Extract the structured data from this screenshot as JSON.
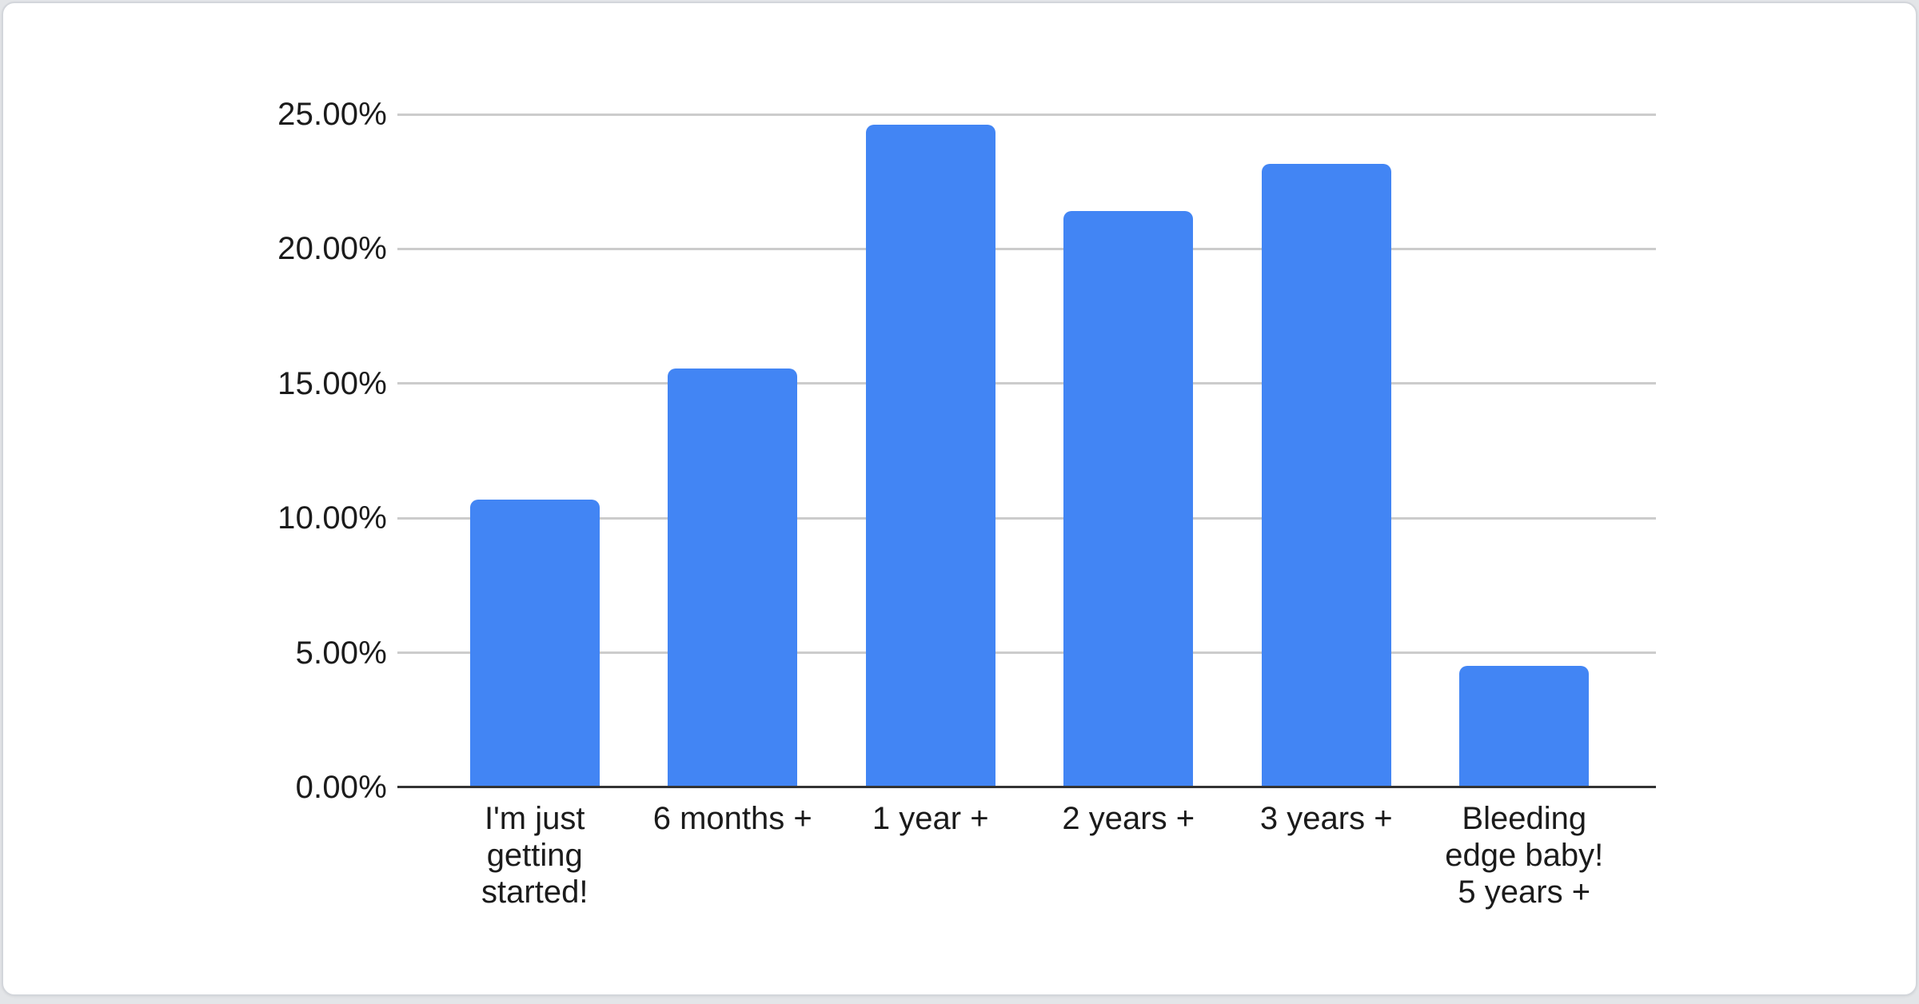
{
  "chart_data": {
    "type": "bar",
    "title": "",
    "xlabel": "",
    "ylabel": "",
    "legend": "none",
    "grid": true,
    "categories": [
      "I'm just getting started!",
      "6 months +",
      "1 year +",
      "2 years +",
      "3 years +",
      "Bleeding edge baby! 5 years +"
    ],
    "categories_display": [
      "I'm just\ngetting\nstarted!",
      "6 months +",
      "1 year +",
      "2 years +",
      "3 years +",
      "Bleeding\nedge baby!\n5 years +"
    ],
    "values": [
      10.7,
      15.55,
      24.6,
      21.4,
      23.15,
      4.5
    ],
    "value_unit": "%",
    "ylim": [
      0,
      25
    ],
    "y_tick_values": [
      0,
      5,
      10,
      15,
      20,
      25
    ],
    "y_tick_labels": [
      "0.00%",
      "5.00%",
      "10.00%",
      "15.00%",
      "20.00%",
      "25.00%"
    ],
    "colors": {
      "bar": "#4285f4",
      "gridline": "#cccccc",
      "axis_line": "#333333",
      "label": "#1b1b1b",
      "card_background": "#ffffff",
      "card_border": "#d3d6db",
      "page_background": "#e3e5e8"
    }
  }
}
